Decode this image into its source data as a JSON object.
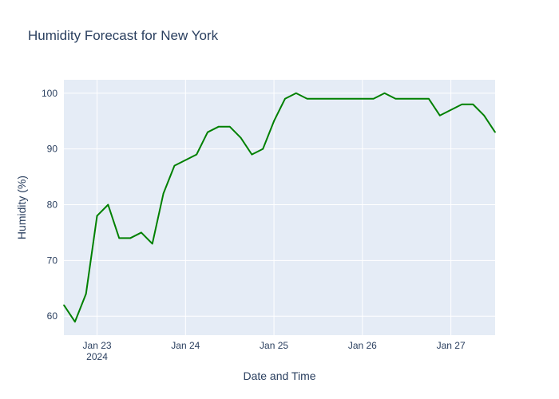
{
  "chart_data": {
    "type": "line",
    "title": "Humidity Forecast for New York",
    "xlabel": "Date and Time",
    "ylabel": "Humidity (%)",
    "x_range": [
      "2024-01-22 15:00",
      "2024-01-27 12:00"
    ],
    "ylim": [
      56.6,
      102.4
    ],
    "y_ticks": [
      60,
      70,
      80,
      90,
      100
    ],
    "x_ticks": [
      {
        "value": "2024-01-23 00:00",
        "label": "Jan 23",
        "sublabel": "2024"
      },
      {
        "value": "2024-01-24 00:00",
        "label": "Jan 24",
        "sublabel": ""
      },
      {
        "value": "2024-01-25 00:00",
        "label": "Jan 25",
        "sublabel": ""
      },
      {
        "value": "2024-01-26 00:00",
        "label": "Jan 26",
        "sublabel": ""
      },
      {
        "value": "2024-01-27 00:00",
        "label": "Jan 27",
        "sublabel": ""
      }
    ],
    "grid": true,
    "legend": "none",
    "colors": {
      "line": "#008000",
      "plot_bg": "#e5ecf6",
      "grid": "#ffffff",
      "text": "#2a3f5f"
    },
    "series": [
      {
        "x": [
          "2024-01-22 15:00",
          "2024-01-22 18:00",
          "2024-01-22 21:00",
          "2024-01-23 00:00",
          "2024-01-23 03:00",
          "2024-01-23 06:00",
          "2024-01-23 09:00",
          "2024-01-23 12:00",
          "2024-01-23 15:00",
          "2024-01-23 18:00",
          "2024-01-23 21:00",
          "2024-01-24 00:00",
          "2024-01-24 03:00",
          "2024-01-24 06:00",
          "2024-01-24 09:00",
          "2024-01-24 12:00",
          "2024-01-24 15:00",
          "2024-01-24 18:00",
          "2024-01-24 21:00",
          "2024-01-25 00:00",
          "2024-01-25 03:00",
          "2024-01-25 06:00",
          "2024-01-25 09:00",
          "2024-01-25 12:00",
          "2024-01-25 15:00",
          "2024-01-25 18:00",
          "2024-01-25 21:00",
          "2024-01-26 00:00",
          "2024-01-26 03:00",
          "2024-01-26 06:00",
          "2024-01-26 09:00",
          "2024-01-26 12:00",
          "2024-01-26 15:00",
          "2024-01-26 18:00",
          "2024-01-26 21:00",
          "2024-01-27 00:00",
          "2024-01-27 03:00",
          "2024-01-27 06:00",
          "2024-01-27 09:00",
          "2024-01-27 12:00"
        ],
        "y": [
          62,
          59,
          64,
          78,
          80,
          74,
          74,
          75,
          73,
          82,
          87,
          88,
          89,
          93,
          94,
          94,
          92,
          89,
          90,
          95,
          99,
          100,
          99,
          99,
          99,
          99,
          99,
          99,
          99,
          100,
          99,
          99,
          99,
          99,
          96,
          97,
          98,
          98,
          96,
          93
        ]
      }
    ]
  }
}
